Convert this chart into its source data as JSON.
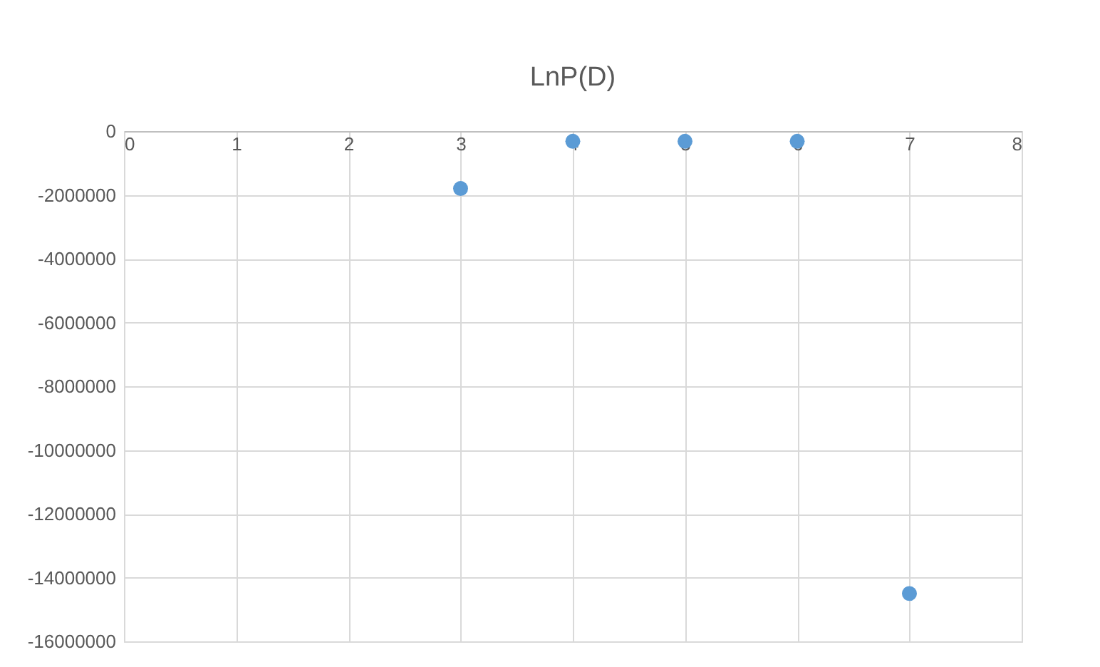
{
  "chart_data": {
    "type": "scatter",
    "title": "LnP(D)",
    "x": [
      3,
      4,
      5,
      6,
      7
    ],
    "series": [
      {
        "color": "#5b9bd5",
        "values": [
          -1800000,
          -320000,
          -320000,
          -320000,
          -14500000
        ]
      }
    ],
    "xlim": [
      0,
      8
    ],
    "xticks": [
      0,
      1,
      2,
      3,
      4,
      5,
      6,
      7,
      8
    ],
    "ylim": [
      -16000000,
      0
    ],
    "yticks": [
      -16000000,
      -14000000,
      -12000000,
      -10000000,
      -8000000,
      -6000000,
      -4000000,
      -2000000,
      0
    ],
    "grid": true,
    "marker": "circle",
    "legend": false
  }
}
